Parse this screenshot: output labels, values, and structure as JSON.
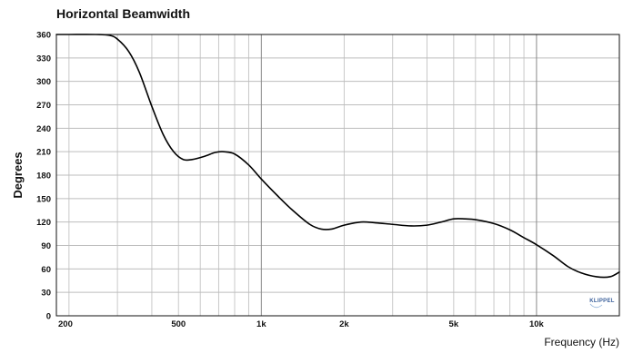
{
  "chart_data": {
    "type": "line",
    "title": "Horizontal Beamwidth",
    "xlabel": "Frequency (Hz)",
    "ylabel": "Degrees",
    "x_scale": "log",
    "xlim": [
      180,
      20000
    ],
    "ylim": [
      0,
      360
    ],
    "y_ticks": [
      0,
      30,
      60,
      90,
      120,
      150,
      180,
      210,
      240,
      270,
      300,
      330,
      360
    ],
    "x_tick_values": [
      200,
      500,
      1000,
      2000,
      5000,
      10000
    ],
    "x_tick_labels": [
      "200",
      "500",
      "1k",
      "2k",
      "5k",
      "10k"
    ],
    "grid": true,
    "series": [
      {
        "color": "#000000",
        "x": [
          180,
          200,
          250,
          280,
          300,
          330,
          360,
          400,
          440,
          480,
          520,
          560,
          620,
          680,
          730,
          800,
          900,
          1000,
          1150,
          1300,
          1500,
          1650,
          1800,
          2000,
          2300,
          2600,
          3000,
          3500,
          4000,
          4500,
          5000,
          5500,
          6000,
          7000,
          8000,
          9000,
          10000,
          11500,
          13000,
          14500,
          16500,
          18500,
          20000
        ],
        "y": [
          360,
          360,
          360,
          359,
          354,
          338,
          312,
          268,
          232,
          210,
          200,
          200,
          204,
          209,
          210,
          207,
          193,
          175,
          153,
          135,
          117,
          111,
          111,
          116,
          120,
          119,
          117,
          115,
          116,
          120,
          124,
          124,
          123,
          118,
          110,
          100,
          91,
          77,
          63,
          55,
          50,
          50,
          56
        ]
      }
    ]
  },
  "logo": {
    "text": "KLIPPEL"
  }
}
